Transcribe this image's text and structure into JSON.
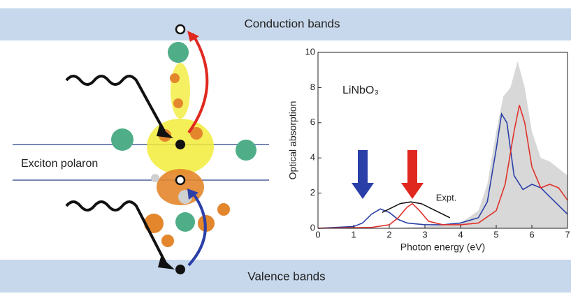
{
  "bands": {
    "top": "Conduction bands",
    "bottom": "Valence bands"
  },
  "labels": {
    "exciton": "Exciton polaron"
  },
  "chart_data": {
    "type": "line",
    "annotation": "LiNbO₃",
    "x_label": "Photon energy (eV)",
    "y_label": "Optical absorption",
    "xlim": [
      0,
      7
    ],
    "xticks": [
      0,
      1,
      2,
      3,
      4,
      5,
      6,
      7
    ],
    "ylim": [
      0,
      10
    ],
    "yticks": [
      0,
      2,
      4,
      6,
      8,
      10
    ],
    "series": [
      {
        "color": "#d8d8d8",
        "fill": true,
        "x": [
          0,
          1,
          2,
          3,
          4,
          4.5,
          4.75,
          5,
          5.2,
          5.4,
          5.6,
          5.8,
          6,
          6.25,
          6.5,
          7
        ],
        "values": [
          0,
          0,
          0,
          0.1,
          0.3,
          1,
          2.5,
          5.5,
          7.5,
          8,
          9.5,
          8,
          5.5,
          4,
          3.8,
          3
        ]
      },
      {
        "color": "#2b3fa8",
        "x": [
          0,
          1,
          1.25,
          1.5,
          1.75,
          2,
          2.25,
          2.5,
          3,
          3.5,
          4,
          4.5,
          4.75,
          5,
          5.15,
          5.3,
          5.5,
          5.75,
          6,
          6.25,
          6.5,
          7
        ],
        "values": [
          0,
          0.1,
          0.3,
          0.8,
          1.1,
          0.9,
          0.5,
          0.3,
          0.2,
          0.2,
          0.3,
          0.6,
          1.5,
          4.5,
          6.5,
          6,
          3,
          2.2,
          2.5,
          2.3,
          1.8,
          0.8
        ]
      },
      {
        "color": "#e0322a",
        "x": [
          0,
          1.5,
          2,
          2.25,
          2.5,
          2.65,
          2.85,
          3.1,
          3.5,
          4,
          4.5,
          5,
          5.25,
          5.5,
          5.65,
          5.8,
          6,
          6.25,
          6.5,
          6.75,
          7
        ],
        "values": [
          0,
          0.05,
          0.2,
          0.6,
          1.2,
          1.4,
          1,
          0.4,
          0.2,
          0.2,
          0.3,
          1,
          2.5,
          5.5,
          7,
          6,
          3.5,
          2.3,
          2.5,
          2.3,
          1.6
        ]
      },
      {
        "name": "Expt.",
        "color": "#111111",
        "x": [
          1.8,
          2,
          2.3,
          2.6,
          2.9,
          3.2,
          3.5,
          3.7
        ],
        "values": [
          0.9,
          1.1,
          1.4,
          1.5,
          1.4,
          1.1,
          0.8,
          0.6
        ]
      }
    ]
  }
}
